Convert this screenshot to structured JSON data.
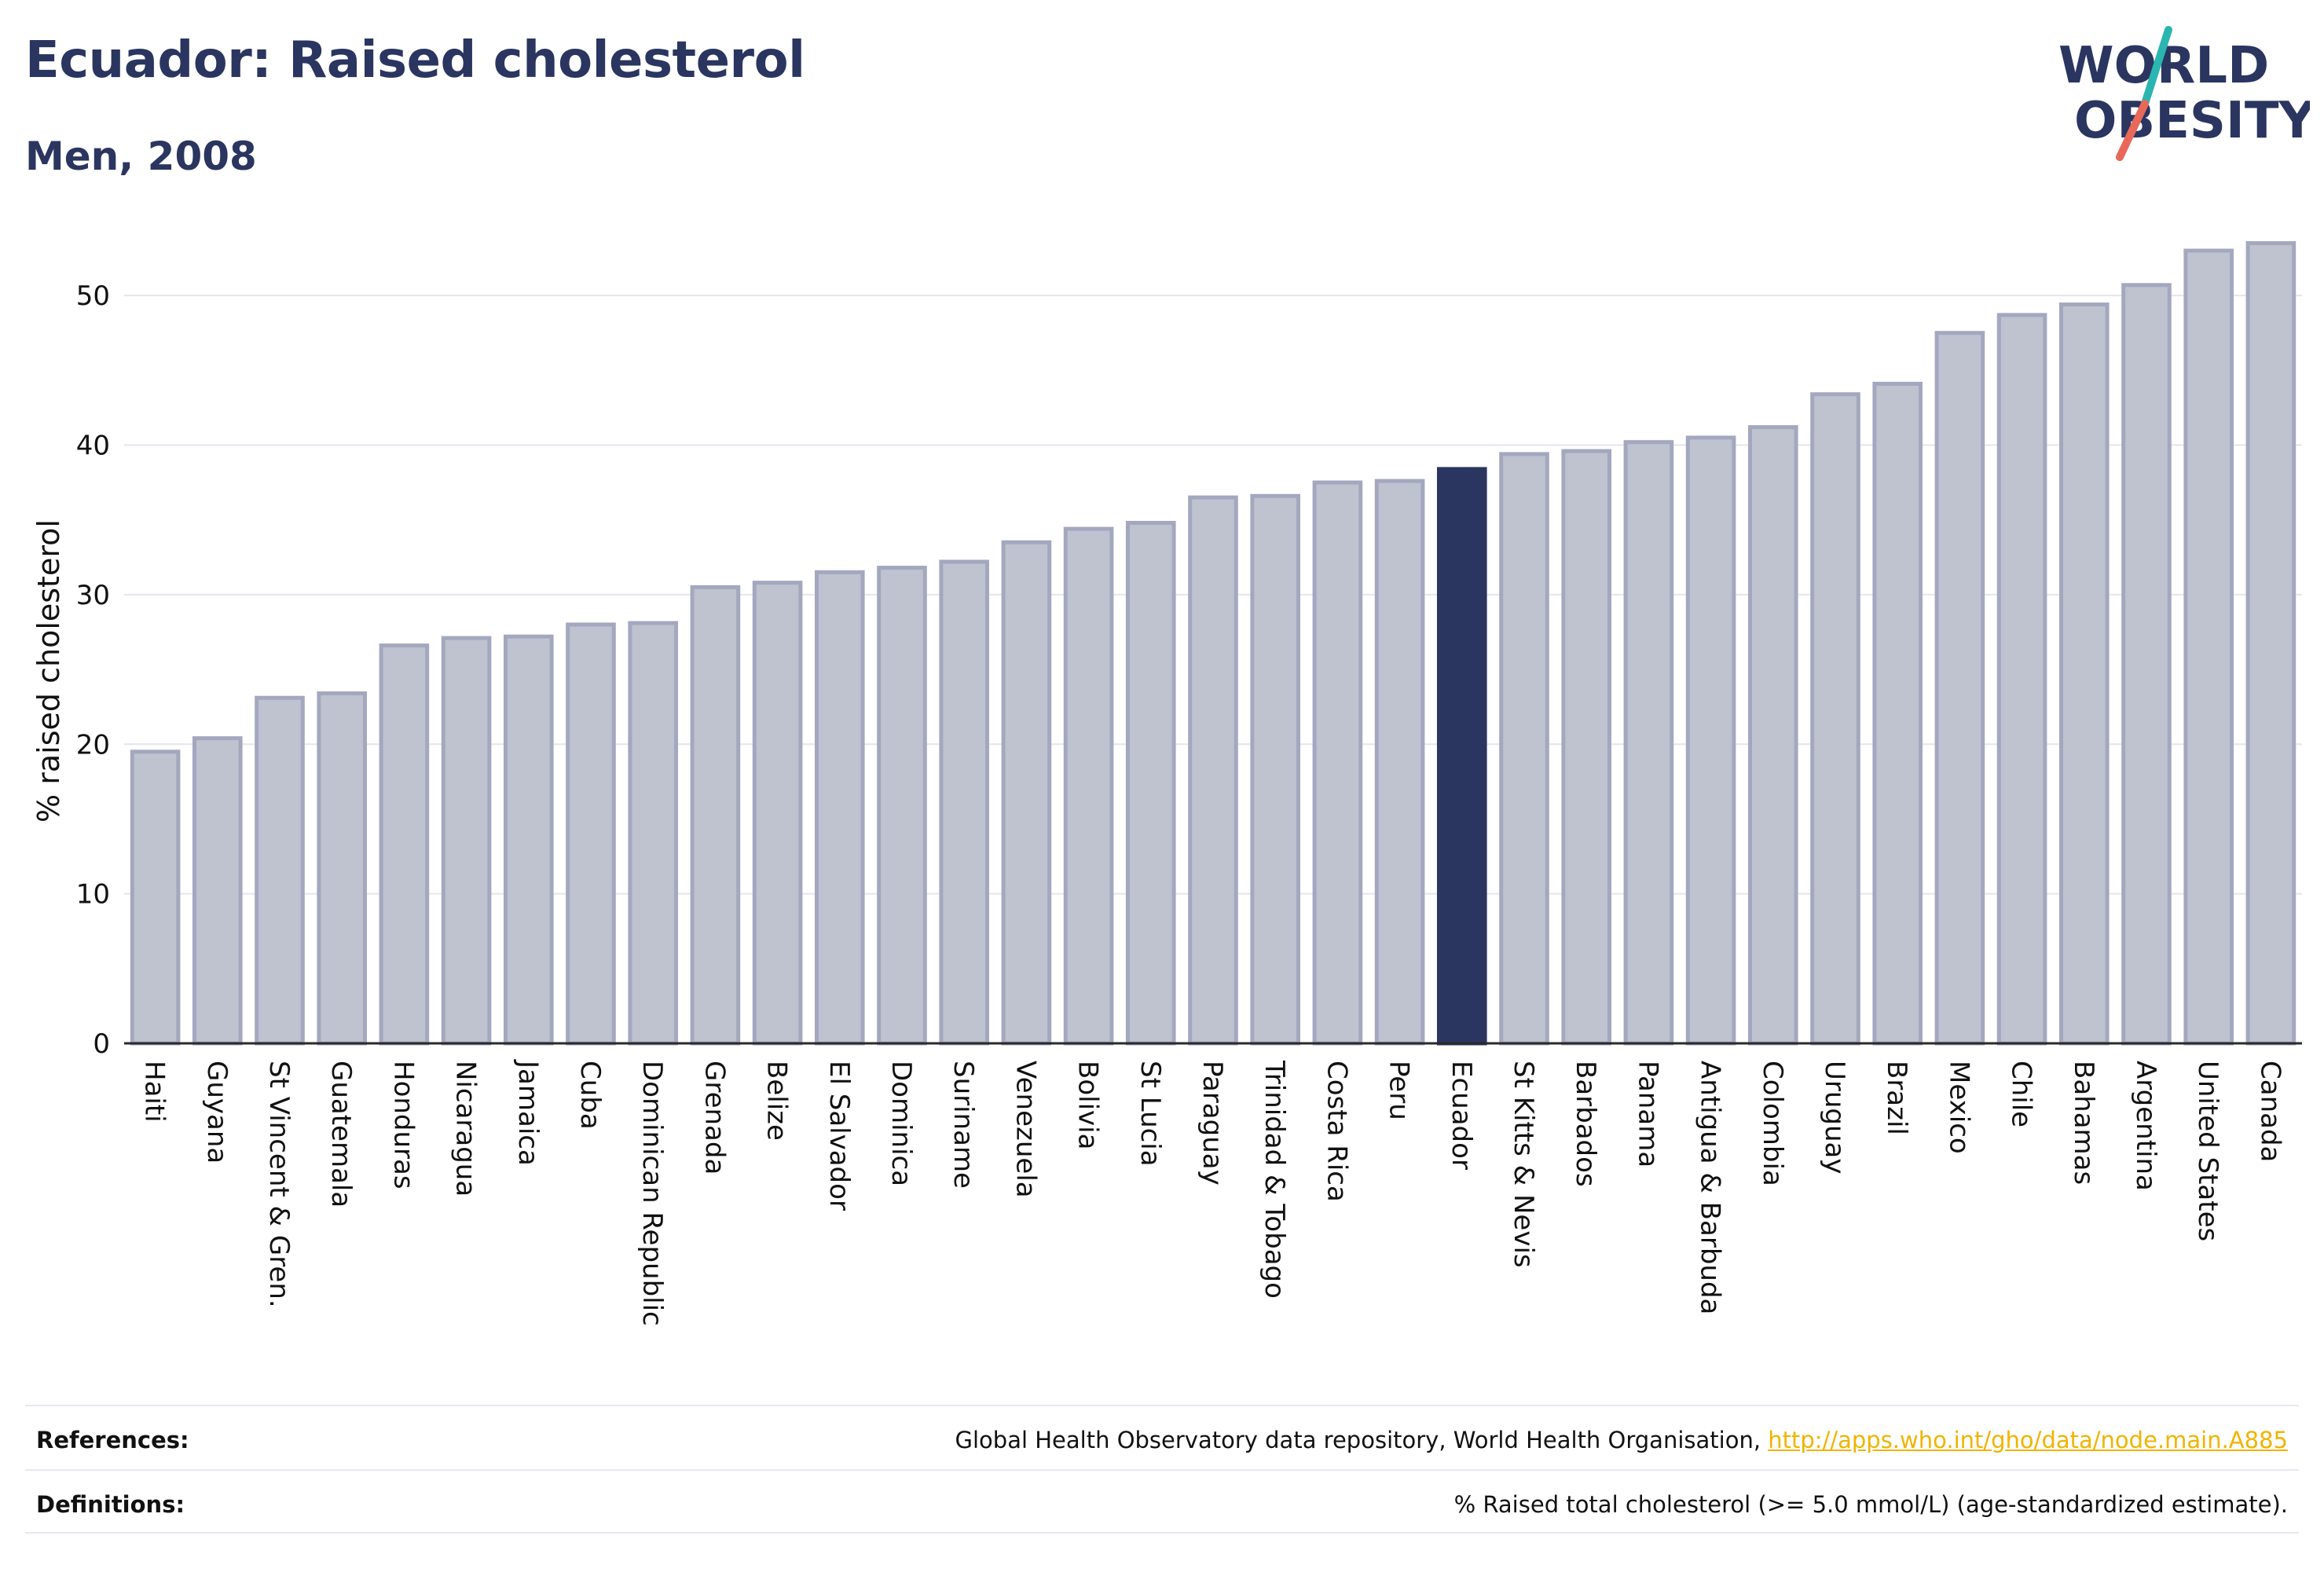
{
  "header": {
    "title": "Ecuador: Raised cholesterol",
    "subtitle": "Men, 2008"
  },
  "logo": {
    "line1": "WORLD",
    "line2": "OBESITY",
    "colors": {
      "text": "#2a3560",
      "slash_teal": "#2bb5b0",
      "slash_coral": "#e8695a"
    }
  },
  "chart_data": {
    "type": "bar",
    "title": "Ecuador: Raised cholesterol",
    "subtitle": "Men, 2008",
    "xlabel": "",
    "ylabel": "% raised cholesterol",
    "ylim": [
      0,
      54
    ],
    "yticks": [
      0,
      10,
      20,
      30,
      40,
      50
    ],
    "grid": true,
    "highlight": "Ecuador",
    "colors": {
      "bar": "#bfc2cf",
      "bar_border": "#a3a8bf",
      "highlight": "#2a3560"
    },
    "categories": [
      "Haiti",
      "Guyana",
      "St Vincent & Gren.",
      "Guatemala",
      "Honduras",
      "Nicaragua",
      "Jamaica",
      "Cuba",
      "Dominican Republic",
      "Grenada",
      "Belize",
      "El Salvador",
      "Dominica",
      "Suriname",
      "Venezuela",
      "Bolivia",
      "St Lucia",
      "Paraguay",
      "Trinidad & Tobago",
      "Costa Rica",
      "Peru",
      "Ecuador",
      "St Kitts & Nevis",
      "Barbados",
      "Panama",
      "Antigua & Barbuda",
      "Colombia",
      "Uruguay",
      "Brazil",
      "Mexico",
      "Chile",
      "Bahamas",
      "Argentina",
      "United States",
      "Canada"
    ],
    "values": [
      19.5,
      20.4,
      23.1,
      23.4,
      26.6,
      27.1,
      27.2,
      28.0,
      28.1,
      30.5,
      30.8,
      31.5,
      31.8,
      32.2,
      33.5,
      34.4,
      34.8,
      36.5,
      36.6,
      37.5,
      37.6,
      38.4,
      39.4,
      39.6,
      40.2,
      40.5,
      41.2,
      43.4,
      44.1,
      47.5,
      48.7,
      49.4,
      50.7,
      53.0,
      53.5
    ]
  },
  "footer": {
    "references_label": "References:",
    "references_text": "Global Health Observatory data repository, World Health Organisation,",
    "references_link": "http://apps.who.int/gho/data/node.main.A885",
    "definitions_label": "Definitions:",
    "definitions_text": "% Raised total cholesterol (>= 5.0 mmol/L) (age-standardized estimate)."
  }
}
